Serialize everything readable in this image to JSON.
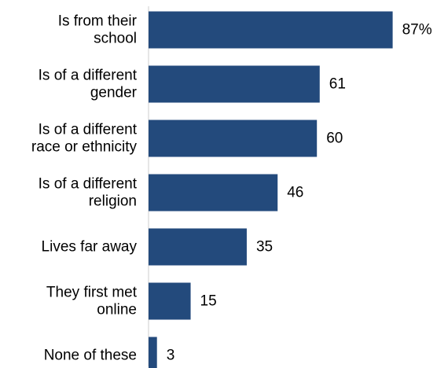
{
  "chart_data": {
    "type": "bar",
    "orientation": "horizontal",
    "categories": [
      [
        "Is from their",
        "school"
      ],
      [
        "Is of a different",
        "gender"
      ],
      [
        "Is of a different",
        "race or ethnicity"
      ],
      [
        "Is of a different",
        "religion"
      ],
      [
        "Lives far away"
      ],
      [
        "They first met",
        "online"
      ],
      [
        "None of these"
      ]
    ],
    "values": [
      87,
      61,
      60,
      46,
      35,
      15,
      3
    ],
    "value_labels": [
      "87%",
      "61",
      "60",
      "46",
      "35",
      "15",
      "3"
    ],
    "xlim": [
      0,
      100
    ],
    "bar_color": "#234a7c",
    "grid": false,
    "legend": "none"
  }
}
